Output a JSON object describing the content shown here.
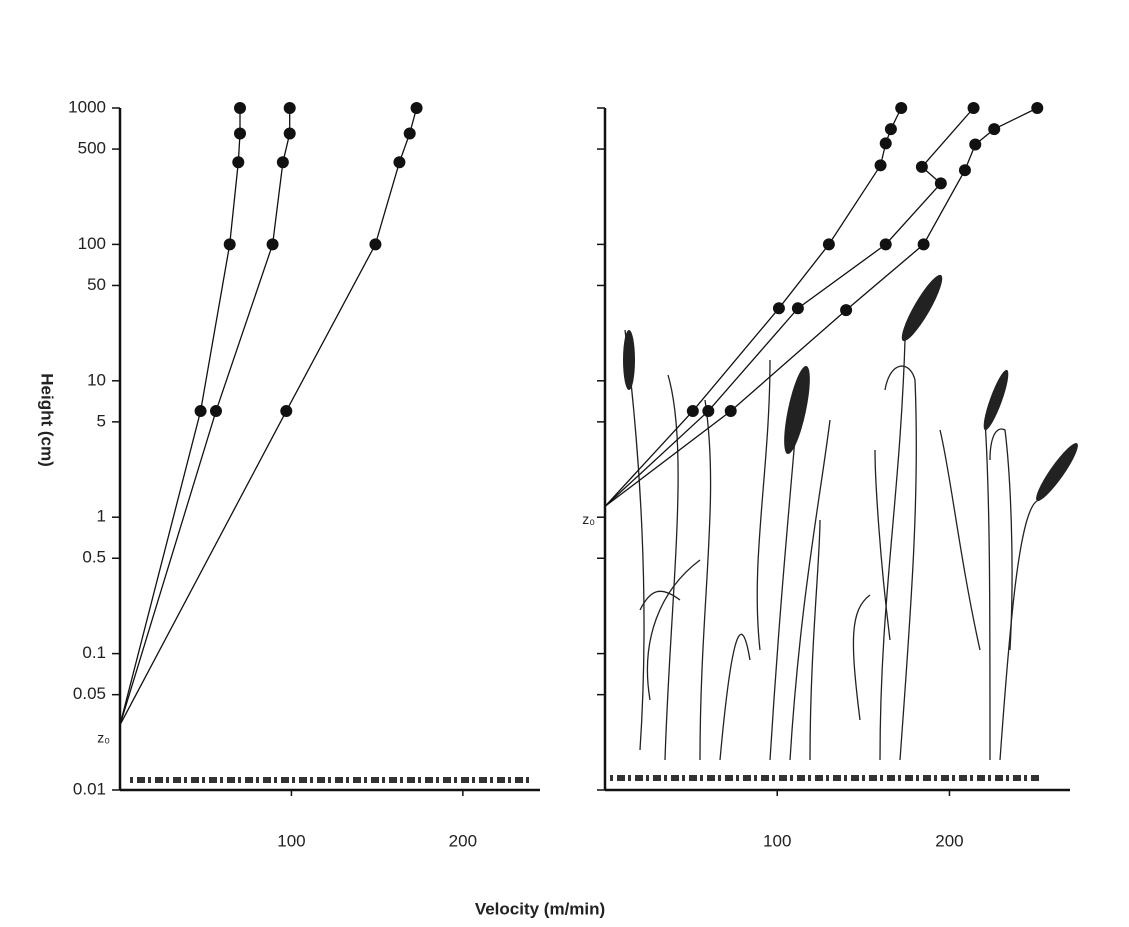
{
  "xlabel": "Velocity (m/min)",
  "chart_data": [
    {
      "type": "line",
      "ylabel": "Height (cm)",
      "log_y": true,
      "xlim": [
        0,
        245
      ],
      "ylim": [
        0.01,
        1000
      ],
      "xticks": [
        100,
        200
      ],
      "yticks": [
        0.01,
        0.05,
        0.1,
        0.5,
        1,
        5,
        10,
        50,
        100,
        500,
        1000
      ],
      "annotation": "z₀",
      "color": "#111",
      "series": [
        {
          "x": [
            0,
            47,
            64,
            69,
            70,
            70
          ],
          "y": [
            0.03,
            6,
            100,
            400,
            650,
            1000
          ]
        },
        {
          "x": [
            0,
            56,
            89,
            95,
            99,
            99
          ],
          "y": [
            0.03,
            6,
            100,
            400,
            650,
            1000
          ]
        },
        {
          "x": [
            0,
            97,
            149,
            163,
            169,
            173
          ],
          "y": [
            0.03,
            6,
            100,
            400,
            650,
            1000
          ]
        }
      ]
    },
    {
      "type": "line",
      "log_y": true,
      "xlim": [
        0,
        270
      ],
      "ylim": [
        0.01,
        1000
      ],
      "xticks": [
        100,
        200
      ],
      "annotation": "z₀",
      "color": "#111",
      "series": [
        {
          "x": [
            0,
            51,
            101,
            130,
            160,
            163,
            166,
            172
          ],
          "y": [
            1.2,
            6,
            34,
            100,
            380,
            550,
            700,
            1000
          ]
        },
        {
          "x": [
            0,
            60,
            112,
            163,
            195,
            184,
            214
          ],
          "y": [
            1.2,
            6,
            34,
            100,
            280,
            370,
            1000
          ]
        },
        {
          "x": [
            0,
            73,
            140,
            185,
            209,
            215,
            226,
            251
          ],
          "y": [
            1.2,
            6,
            33,
            100,
            350,
            540,
            700,
            1000
          ]
        }
      ]
    }
  ]
}
